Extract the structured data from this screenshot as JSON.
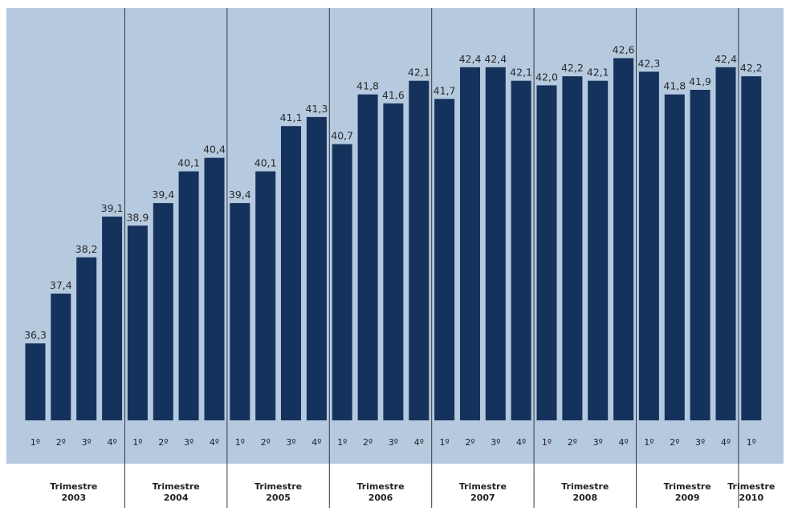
{
  "chart_data": {
    "type": "bar",
    "ylim": [
      34.6,
      43.3
    ],
    "grid": false,
    "legend": "none",
    "colors": {
      "plot_background": "#b5c9df",
      "bar": "#15325c",
      "divider": "#3a3a3a",
      "value_label": "#2a2a2a",
      "axis_label": "#222222"
    },
    "groups": [
      {
        "label_line1": "Trimestre",
        "label_line2": "2003",
        "quarters": [
          "1º",
          "2º",
          "3º",
          "4º"
        ],
        "values": [
          "36,3",
          "37,4",
          "38,2",
          "39,1"
        ]
      },
      {
        "label_line1": "Trimestre",
        "label_line2": "2004",
        "quarters": [
          "1º",
          "2º",
          "3º",
          "4º"
        ],
        "values": [
          "38,9",
          "39,4",
          "40,1",
          "40,4"
        ]
      },
      {
        "label_line1": "Trimestre",
        "label_line2": "2005",
        "quarters": [
          "1º",
          "2º",
          "3º",
          "4º"
        ],
        "values": [
          "39,4",
          "40,1",
          "41,1",
          "41,3"
        ]
      },
      {
        "label_line1": "Trimestre",
        "label_line2": "2006",
        "quarters": [
          "1º",
          "2º",
          "3º",
          "4º"
        ],
        "values": [
          "40,7",
          "41,8",
          "41,6",
          "42,1"
        ]
      },
      {
        "label_line1": "Trimestre",
        "label_line2": "2007",
        "quarters": [
          "1º",
          "2º",
          "3º",
          "4º"
        ],
        "values": [
          "41,7",
          "42,4",
          "42,4",
          "42,1"
        ]
      },
      {
        "label_line1": "Trimestre",
        "label_line2": "2008",
        "quarters": [
          "1º",
          "2º",
          "3º",
          "4º"
        ],
        "values": [
          "42,0",
          "42,2",
          "42,1",
          "42,6"
        ]
      },
      {
        "label_line1": "Trimestre",
        "label_line2": "2009",
        "quarters": [
          "1º",
          "2º",
          "3º",
          "4º"
        ],
        "values": [
          "42,3",
          "41,8",
          "41,9",
          "42,4"
        ]
      },
      {
        "label_line1": "Trimestre",
        "label_line2": "2010",
        "quarters": [
          "1º"
        ],
        "values": [
          "42,2"
        ]
      }
    ]
  }
}
